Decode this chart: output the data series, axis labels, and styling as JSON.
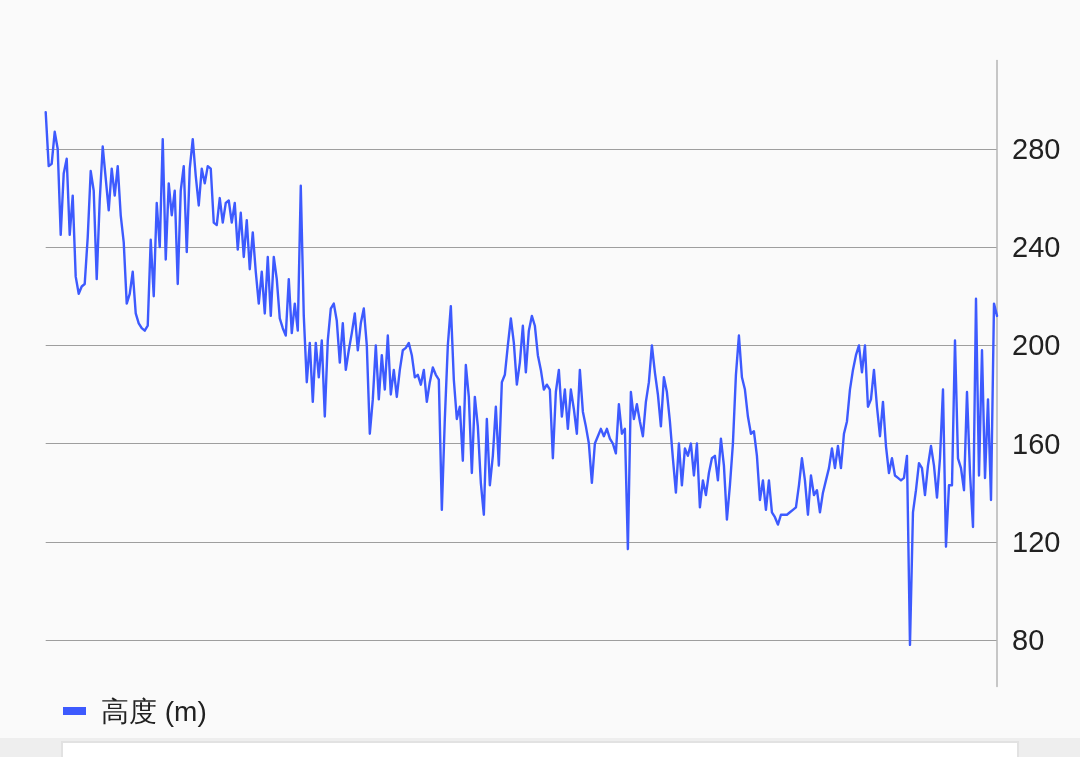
{
  "chart_data": {
    "type": "line",
    "categories": [
      null,
      null,
      null,
      null,
      null,
      null,
      null,
      null,
      null,
      null,
      null,
      null,
      null,
      null,
      null,
      null,
      null,
      null,
      null,
      null,
      null,
      null,
      null,
      null,
      null,
      null,
      null,
      null,
      null,
      null,
      null,
      null,
      null,
      null,
      null,
      null,
      null,
      null,
      null,
      null,
      null,
      null,
      null,
      null,
      null,
      null,
      null,
      null,
      null,
      null,
      null,
      null,
      null,
      null,
      null,
      null,
      null,
      null,
      null,
      null,
      null,
      null,
      null,
      null,
      null,
      null,
      null,
      null,
      null,
      null,
      null,
      null,
      null,
      null,
      null,
      null,
      null,
      null,
      null,
      null,
      null,
      null,
      null,
      null,
      null,
      null,
      null,
      null,
      null,
      null,
      null,
      null,
      null,
      null,
      null,
      null,
      null,
      null,
      null,
      null,
      null,
      null,
      null,
      null,
      null,
      null,
      null,
      null,
      null,
      null,
      null,
      null,
      null,
      null,
      null,
      null,
      null,
      null,
      null,
      null,
      null,
      null,
      null,
      null,
      null,
      null,
      null,
      null,
      null,
      null,
      null,
      null,
      null,
      null,
      null,
      null,
      null,
      null,
      null,
      null,
      null,
      null,
      null,
      null,
      null,
      null,
      null,
      null,
      null,
      null,
      null,
      null,
      null,
      null,
      null,
      null,
      null,
      null,
      null,
      null,
      null,
      null,
      null,
      null,
      null,
      null,
      null,
      null,
      null,
      null,
      null,
      null,
      null,
      null,
      null,
      null,
      null,
      null,
      null,
      null,
      null,
      null,
      null,
      null,
      null,
      null,
      null,
      null,
      null,
      null,
      null,
      null,
      null,
      null,
      null,
      null,
      null,
      null,
      null,
      null,
      null,
      null,
      null,
      null,
      null,
      null,
      null,
      null,
      null,
      null,
      null,
      null,
      null,
      null,
      null,
      null,
      null,
      null,
      null,
      null,
      null,
      null,
      null,
      null,
      null,
      null,
      null,
      null,
      null,
      null,
      null,
      null,
      null,
      null,
      null,
      null,
      null,
      null,
      null,
      null,
      null,
      null,
      null,
      null,
      null,
      null,
      null,
      null,
      null,
      null,
      null,
      null,
      null,
      null,
      null,
      null,
      null,
      null,
      null,
      null,
      null,
      null,
      null,
      null,
      null,
      null,
      null,
      null,
      null,
      null,
      null,
      null,
      null,
      null,
      null,
      null,
      null,
      null,
      null,
      null,
      null,
      null,
      null,
      null,
      null,
      null,
      null,
      null,
      null,
      null,
      null,
      null,
      null,
      null,
      null,
      null,
      null,
      null,
      null,
      null,
      null,
      null,
      null,
      null,
      null,
      null,
      null,
      null,
      null,
      null,
      null,
      null,
      null,
      null,
      null,
      null,
      null,
      null
    ],
    "series": [
      {
        "name": "高度 (m)",
        "color": "#3d5afe",
        "values": [
          295,
          273,
          274,
          287,
          280,
          245,
          270,
          276,
          245,
          261,
          228,
          221,
          224,
          225,
          244,
          271,
          263,
          227,
          259,
          281,
          268,
          255,
          272,
          261,
          273,
          253,
          242,
          217,
          221,
          230,
          213,
          209,
          207,
          206,
          208,
          243,
          220,
          258,
          240,
          284,
          235,
          266,
          253,
          263,
          225,
          263,
          273,
          238,
          272,
          284,
          269,
          257,
          272,
          266,
          273,
          272,
          250,
          249,
          260,
          250,
          258,
          259,
          250,
          258,
          239,
          254,
          236,
          251,
          231,
          246,
          230,
          217,
          230,
          213,
          236,
          212,
          236,
          227,
          211,
          207,
          204,
          227,
          205,
          217,
          206,
          265,
          212,
          185,
          201,
          177,
          201,
          187,
          202,
          171,
          202,
          215,
          217,
          210,
          193,
          209,
          190,
          198,
          205,
          213,
          198,
          209,
          215,
          200,
          164,
          178,
          200,
          178,
          196,
          182,
          204,
          180,
          190,
          179,
          190,
          198,
          199,
          201,
          196,
          187,
          188,
          184,
          190,
          177,
          185,
          191,
          188,
          186,
          133,
          170,
          200,
          216,
          186,
          170,
          175,
          153,
          192,
          179,
          148,
          179,
          167,
          144,
          131,
          170,
          143,
          155,
          175,
          151,
          185,
          188,
          200,
          211,
          201,
          184,
          193,
          208,
          189,
          206,
          212,
          208,
          196,
          190,
          182,
          184,
          182,
          154,
          181,
          190,
          171,
          182,
          166,
          182,
          174,
          164,
          190,
          173,
          167,
          160,
          144,
          160,
          163,
          166,
          163,
          166,
          162,
          160,
          156,
          176,
          164,
          166,
          117,
          181,
          170,
          176,
          169,
          163,
          177,
          185,
          200,
          189,
          180,
          167,
          187,
          181,
          169,
          154,
          140,
          160,
          143,
          158,
          155,
          160,
          147,
          160,
          134,
          145,
          139,
          148,
          154,
          155,
          145,
          162,
          151,
          129,
          143,
          160,
          188,
          204,
          187,
          182,
          171,
          164,
          165,
          155,
          137,
          145,
          133,
          145,
          132,
          130,
          127,
          131,
          131,
          131,
          132,
          133,
          134,
          143,
          154,
          145,
          131,
          147,
          139,
          141,
          132,
          140,
          145,
          150,
          158,
          150,
          159,
          150,
          164,
          169,
          182,
          190,
          196,
          200,
          189,
          200,
          175,
          178,
          190,
          175,
          163,
          177,
          159,
          148,
          154,
          147,
          146,
          145,
          146,
          155,
          78,
          132,
          141,
          152,
          150,
          139,
          151,
          159,
          151,
          138,
          154,
          182,
          118,
          143,
          143,
          202,
          154,
          150,
          141,
          181,
          148,
          126,
          219,
          147,
          198,
          146,
          178,
          137,
          217,
          212
        ]
      }
    ],
    "ylim": [
      61,
      316
    ],
    "yticks": [
      80,
      120,
      160,
      200,
      240,
      280
    ],
    "grid": "y",
    "legend": "bottom left",
    "tick_labels": "y"
  }
}
